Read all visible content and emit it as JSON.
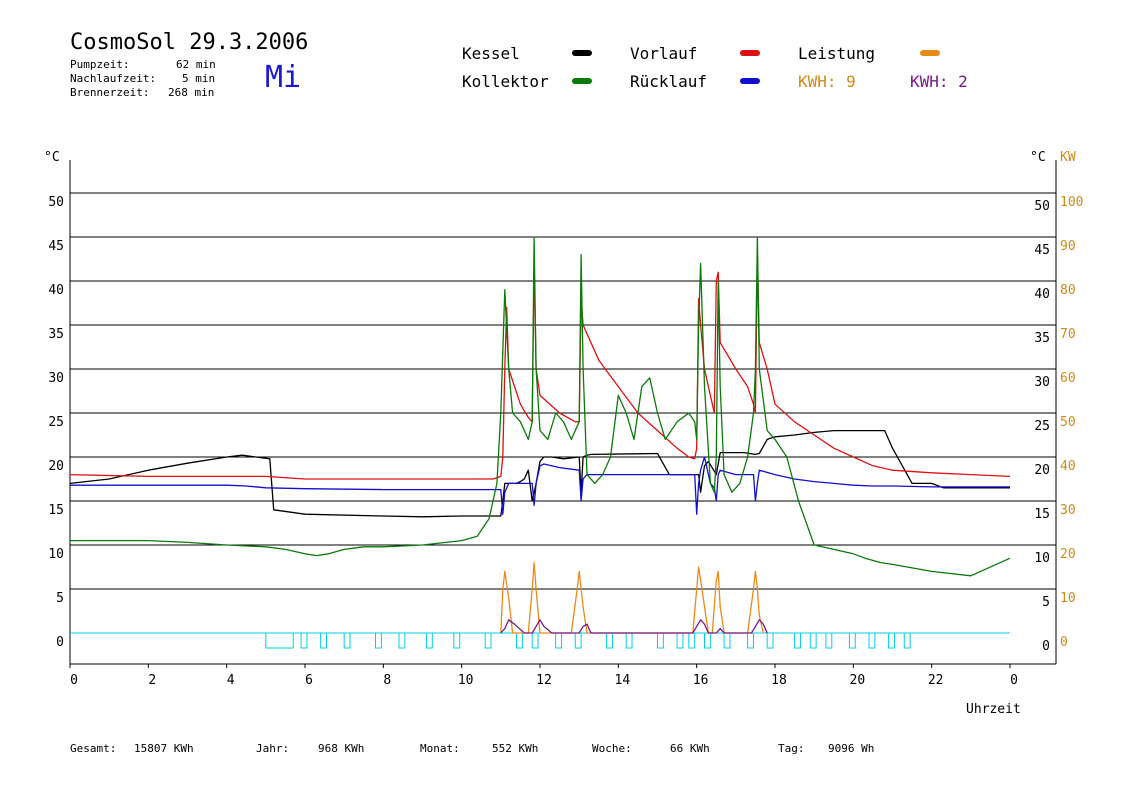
{
  "header": {
    "title": "CosmoSol 29.3.2006",
    "pumpzeit_label": "Pumpzeit:",
    "pumpzeit_value": "62 min",
    "nachlauf_label": "Nachlaufzeit:",
    "nachlauf_value": "5 min",
    "brenner_label": "Brennerzeit:",
    "brenner_value": "268 min",
    "weekday": "Mi"
  },
  "legend": {
    "kessel": "Kessel",
    "kollektor": "Kollektor",
    "vorlauf": "Vorlauf",
    "ruecklauf": "Rücklauf",
    "leistung": "Leistung",
    "kwh1": "KWH: 9",
    "kwh2": "KWH: 2"
  },
  "colors": {
    "kessel": "#000000",
    "kollektor": "#0a7a0a",
    "vorlauf": "#dd1111",
    "ruecklauf": "#1010cc",
    "leistung": "#e88a1a",
    "kwh2": "#7a1a8a",
    "pump": "#00d0e0"
  },
  "axes": {
    "left_unit": "°C",
    "right_unit": "°C",
    "kw_unit": "KW",
    "x_label": "Uhrzeit"
  },
  "chart_data": {
    "type": "line",
    "title": "CosmoSol 29.3.2006",
    "xlabel": "Uhrzeit",
    "ylabel": "°C",
    "y2label": "KW",
    "xlim": [
      0,
      24
    ],
    "ylim": [
      -3.5,
      53
    ],
    "y2lim": [
      0,
      100
    ],
    "x_ticks": [
      "0",
      "2",
      "4",
      "6",
      "8",
      "10",
      "12",
      "14",
      "16",
      "18",
      "20",
      "22",
      "0"
    ],
    "y_ticks": [
      0,
      5,
      10,
      15,
      20,
      25,
      30,
      35,
      40,
      45,
      50
    ],
    "y2_ticks": [
      0,
      10,
      20,
      30,
      40,
      50,
      60,
      70,
      80,
      90,
      100
    ],
    "grid": true,
    "series": [
      {
        "name": "Kessel",
        "x": [
          0,
          1,
          2,
          3,
          4,
          4.4,
          5.1,
          5.2,
          6,
          8,
          9,
          10,
          10.9,
          11.0,
          11.05,
          11.1,
          11.3,
          11.4,
          11.5,
          11.6,
          11.7,
          11.8,
          11.9,
          12.0,
          12.1,
          12.3,
          12.6,
          13.0,
          13.05,
          13.1,
          13.2,
          13.3,
          15,
          15.3,
          16,
          16.05,
          16.1,
          16.2,
          16.3,
          16.5,
          16.6,
          16.8,
          17.0,
          17.2,
          17.5,
          17.6,
          17.8,
          18,
          18.5,
          19,
          19.5,
          20,
          20.3,
          20.5,
          20.6,
          20.8,
          21,
          21.5,
          22,
          22.3,
          22.5,
          23,
          24
        ],
        "y": [
          17,
          17.5,
          18.5,
          19.3,
          20,
          20.2,
          19.8,
          14,
          13.5,
          13.3,
          13.2,
          13.3,
          13.3,
          13.3,
          15,
          17,
          17,
          17,
          17.2,
          17.5,
          18.5,
          15,
          17,
          19.5,
          20,
          20,
          19.8,
          20,
          16,
          20,
          20.2,
          20.3,
          20.4,
          18,
          18,
          18,
          16,
          19,
          19.5,
          18,
          20.5,
          20.5,
          20.5,
          20.5,
          20.3,
          20.4,
          22,
          22.3,
          22.5,
          22.8,
          23,
          23,
          23,
          23,
          23,
          23,
          21,
          17,
          17,
          16.5,
          16.5,
          16.5,
          16.5
        ]
      },
      {
        "name": "Vorlauf",
        "x": [
          0,
          2,
          4,
          5,
          6,
          8,
          10,
          10.8,
          11.0,
          11.05,
          11.1,
          11.15,
          11.2,
          11.5,
          11.7,
          11.8,
          11.85,
          11.9,
          12.0,
          12.5,
          12.9,
          13.0,
          13.05,
          13.1,
          13.2,
          13.5,
          14,
          14.5,
          15,
          15.5,
          15.8,
          15.95,
          16.0,
          16.05,
          16.1,
          16.2,
          16.3,
          16.45,
          16.5,
          16.55,
          16.6,
          17,
          17.3,
          17.45,
          17.5,
          17.55,
          17.6,
          17.8,
          18,
          18.5,
          19,
          19.5,
          20,
          20.5,
          21,
          22,
          23,
          24
        ],
        "y": [
          18,
          17.8,
          17.8,
          17.8,
          17.5,
          17.5,
          17.5,
          17.5,
          17.8,
          20,
          30,
          37,
          30,
          26,
          24.5,
          24,
          42,
          30,
          27,
          25,
          24,
          24,
          38,
          35,
          34,
          31,
          28,
          25,
          23,
          21,
          20,
          19.8,
          21,
          38,
          35,
          30,
          28,
          25,
          40,
          41,
          33,
          30,
          28,
          26,
          25,
          43,
          33,
          30,
          26,
          24,
          22.5,
          21,
          20,
          19,
          18.5,
          18.2,
          18,
          17.8
        ]
      },
      {
        "name": "Rücklauf",
        "x": [
          0,
          2,
          4,
          4.5,
          5,
          6,
          8,
          10,
          10.9,
          11.0,
          11.05,
          11.1,
          11.2,
          11.5,
          11.7,
          11.8,
          11.85,
          11.9,
          12.0,
          12.1,
          12.5,
          13.0,
          13.05,
          13.1,
          13.2,
          13.5,
          15,
          15.4,
          15.8,
          15.95,
          16.0,
          16.05,
          16.1,
          16.2,
          16.35,
          16.45,
          16.5,
          16.55,
          16.6,
          17,
          17.45,
          17.5,
          17.55,
          17.6,
          18,
          18.5,
          19,
          19.5,
          20,
          20.5,
          21,
          22,
          23,
          24
        ],
        "y": [
          16.8,
          16.8,
          16.8,
          16.7,
          16.5,
          16.4,
          16.3,
          16.3,
          16.3,
          16.3,
          13.5,
          16,
          17,
          17,
          17,
          17,
          14.5,
          17,
          19,
          19.2,
          18.8,
          18.5,
          15,
          17.5,
          18,
          18,
          18,
          18,
          18,
          18,
          13.5,
          17,
          18.5,
          20,
          17,
          16.5,
          15,
          18,
          18.5,
          18,
          18,
          15,
          17,
          18.5,
          18,
          17.5,
          17.2,
          17,
          16.8,
          16.7,
          16.7,
          16.6,
          16.6,
          16.6
        ]
      },
      {
        "name": "Kollektor",
        "x": [
          0,
          1,
          2,
          3,
          4,
          5,
          5.5,
          6,
          6.3,
          6.6,
          7,
          7.5,
          8,
          9,
          10,
          10.4,
          10.7,
          10.9,
          11.0,
          11.1,
          11.2,
          11.3,
          11.5,
          11.7,
          11.8,
          11.85,
          11.9,
          12.0,
          12.2,
          12.4,
          12.6,
          12.8,
          13.0,
          13.05,
          13.1,
          13.2,
          13.4,
          13.6,
          13.8,
          14,
          14.2,
          14.4,
          14.6,
          14.8,
          15,
          15.2,
          15.5,
          15.8,
          15.95,
          16.0,
          16.05,
          16.1,
          16.2,
          16.35,
          16.45,
          16.5,
          16.55,
          16.6,
          16.7,
          16.9,
          17.1,
          17.3,
          17.45,
          17.5,
          17.55,
          17.6,
          17.8,
          18,
          18.3,
          18.6,
          19,
          19.5,
          20,
          20.3,
          20.7,
          21,
          22,
          23,
          24
        ],
        "y": [
          10.5,
          10.5,
          10.5,
          10.3,
          10.0,
          9.8,
          9.5,
          9.0,
          8.8,
          9.0,
          9.5,
          9.8,
          9.8,
          10.0,
          10.5,
          11,
          13,
          17,
          25,
          39,
          30,
          25,
          24,
          22,
          24,
          45,
          30,
          23,
          22,
          25,
          24,
          22,
          24,
          43,
          30,
          18,
          17,
          18,
          20,
          27,
          25,
          22,
          28,
          29,
          25,
          22,
          24,
          25,
          24,
          22,
          35,
          42,
          28,
          17,
          16,
          20,
          40,
          28,
          18,
          16,
          17,
          20,
          25,
          30,
          45,
          30,
          23,
          22,
          20,
          15,
          10,
          9.5,
          9.0,
          8.5,
          8.0,
          7.8,
          7.0,
          6.5,
          8.5
        ]
      },
      {
        "name": "Leistung",
        "x": [
          11.0,
          11.05,
          11.1,
          11.2,
          11.3,
          11.7,
          11.8,
          11.85,
          11.9,
          12.0,
          12.8,
          12.95,
          13.0,
          13.1,
          13.2,
          15.9,
          16.0,
          16.05,
          16.1,
          16.2,
          16.3,
          16.4,
          16.5,
          16.55,
          16.6,
          16.7,
          17.3,
          17.45,
          17.5,
          17.55,
          17.6,
          17.7
        ],
        "y": [
          0,
          10,
          14,
          8,
          0,
          0,
          10,
          16,
          10,
          0,
          0,
          10,
          14,
          6,
          0,
          0,
          10,
          15,
          12,
          6,
          0,
          0,
          12,
          14,
          6,
          0,
          0,
          10,
          14,
          10,
          4,
          0
        ]
      },
      {
        "name": "KWH: 2",
        "x": [
          11.0,
          11.1,
          11.2,
          11.35,
          11.6,
          11.8,
          11.9,
          12.0,
          12.1,
          12.3,
          13.0,
          13.1,
          13.2,
          13.3,
          15.9,
          16.0,
          16.1,
          16.2,
          16.3,
          16.5,
          16.6,
          16.7,
          17.4,
          17.5,
          17.6,
          17.7,
          17.8
        ],
        "y": [
          0,
          1,
          3,
          2,
          0,
          0,
          1.5,
          3,
          1.5,
          0,
          0,
          1.5,
          2,
          0,
          0,
          1.5,
          3,
          2,
          0,
          0,
          1,
          0,
          0,
          1.5,
          3,
          2,
          0
        ]
      },
      {
        "name": "Pumpe",
        "x": [],
        "y": []
      }
    ],
    "pump_blocks": [
      [
        5.0,
        5.7
      ],
      [
        5.9,
        6.05
      ],
      [
        6.4,
        6.55
      ],
      [
        7.0,
        7.15
      ],
      [
        7.8,
        7.95
      ],
      [
        8.4,
        8.55
      ],
      [
        9.1,
        9.25
      ],
      [
        9.8,
        9.95
      ],
      [
        10.6,
        10.75
      ],
      [
        11.4,
        11.55
      ],
      [
        11.8,
        11.95
      ],
      [
        12.4,
        12.55
      ],
      [
        12.9,
        13.05
      ],
      [
        13.7,
        13.85
      ],
      [
        14.2,
        14.35
      ],
      [
        15.0,
        15.15
      ],
      [
        15.5,
        15.65
      ],
      [
        15.8,
        15.95
      ],
      [
        16.2,
        16.35
      ],
      [
        16.7,
        16.85
      ],
      [
        17.3,
        17.45
      ],
      [
        17.8,
        17.95
      ],
      [
        18.5,
        18.65
      ],
      [
        18.9,
        19.05
      ],
      [
        19.3,
        19.45
      ],
      [
        19.9,
        20.05
      ],
      [
        20.4,
        20.55
      ],
      [
        20.9,
        21.05
      ],
      [
        21.3,
        21.45
      ]
    ],
    "footer": {
      "gesamt_label": "Gesamt:",
      "gesamt": "15807 KWh",
      "jahr_label": "Jahr:",
      "jahr": "968 KWh",
      "monat_label": "Monat:",
      "monat": "552 KWh",
      "woche_label": "Woche:",
      "woche": "66 KWh",
      "tag_label": "Tag:",
      "tag": "9096 Wh"
    }
  }
}
